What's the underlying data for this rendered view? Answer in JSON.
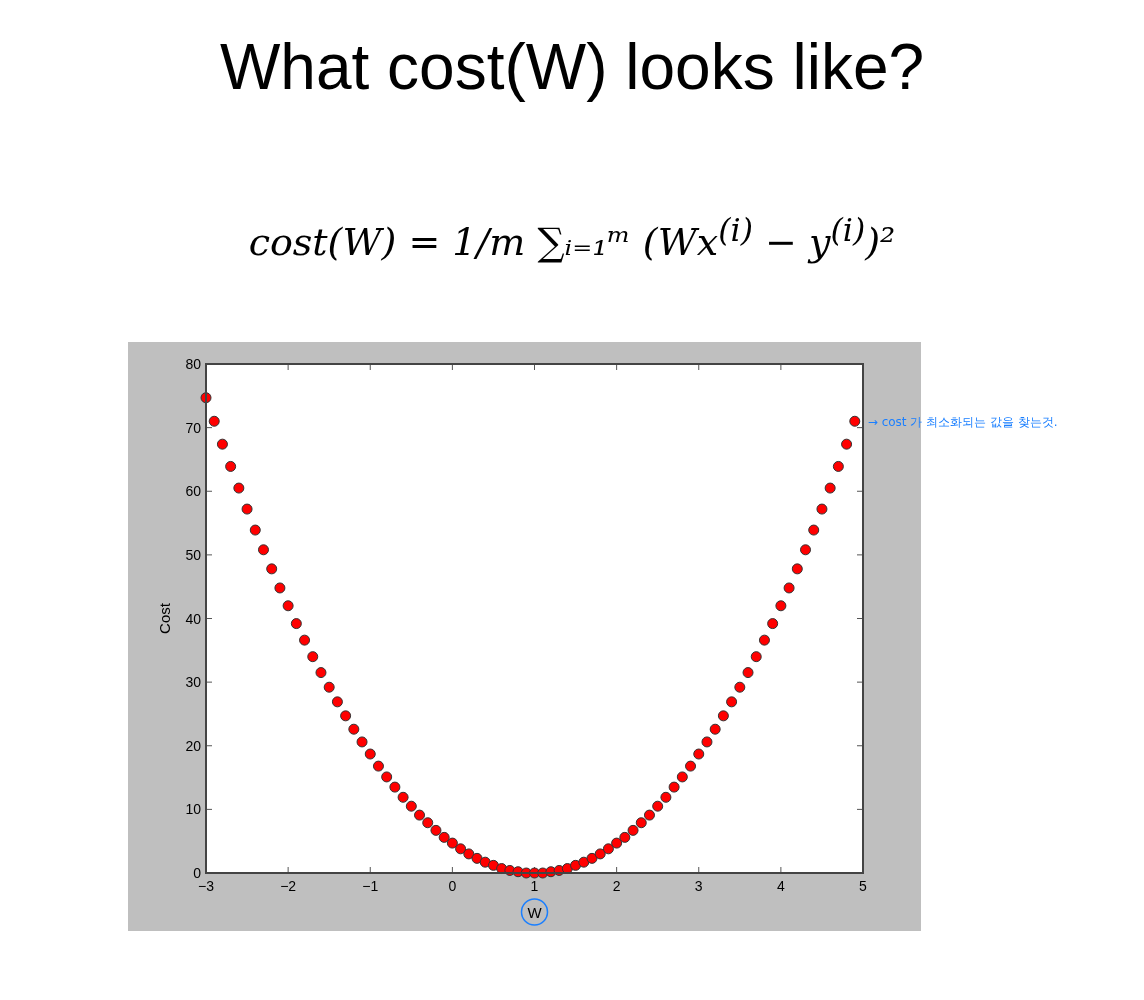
{
  "chart_data": {
    "type": "scatter",
    "title": "What cost(W) looks like?",
    "subtitle": "cost(W) = 1/m ∑ᵢ₌₁ᵐ (Wx$^{(i)}$ − y$^{(i)}$)²",
    "xlabel": "W",
    "ylabel": "Cost",
    "annotations": [
      {
        "text": "→ cost 가 최소화되는 값을 찾는것.",
        "x": 4.9,
        "y": 71.0
      }
    ],
    "x": [
      -3.0,
      -2.9,
      -2.8,
      -2.7,
      -2.6,
      -2.5,
      -2.4,
      -2.3,
      -2.2,
      -2.1,
      -2.0,
      -1.9,
      -1.8,
      -1.7,
      -1.6,
      -1.5,
      -1.4,
      -1.3,
      -1.2,
      -1.1,
      -1.0,
      -0.9,
      -0.8,
      -0.7,
      -0.6,
      -0.5,
      -0.4,
      -0.3,
      -0.2,
      -0.1,
      0.0,
      0.1,
      0.2,
      0.3,
      0.4,
      0.5,
      0.6,
      0.7,
      0.8,
      0.9,
      1.0,
      1.1,
      1.2,
      1.3,
      1.4,
      1.5,
      1.6,
      1.7,
      1.8,
      1.9,
      2.0,
      2.1,
      2.2,
      2.3,
      2.4,
      2.5,
      2.6,
      2.7,
      2.8,
      2.9,
      3.0,
      3.1,
      3.2,
      3.3,
      3.4,
      3.5,
      3.6,
      3.7,
      3.8,
      3.9,
      4.0,
      4.1,
      4.2,
      4.3,
      4.4,
      4.5,
      4.6,
      4.7,
      4.8,
      4.9
    ],
    "series": [
      {
        "color": "#ff0000",
        "values": [
          74.7,
          71.0,
          67.4,
          63.9,
          60.5,
          57.2,
          53.9,
          50.8,
          47.8,
          44.8,
          42.0,
          39.2,
          36.6,
          34.0,
          31.5,
          29.2,
          26.9,
          24.7,
          22.6,
          20.6,
          18.7,
          16.8,
          15.1,
          13.5,
          11.9,
          10.5,
          9.1,
          7.9,
          6.7,
          5.6,
          4.7,
          3.8,
          3.0,
          2.3,
          1.7,
          1.2,
          0.7,
          0.4,
          0.2,
          0.0,
          0.0,
          0.0,
          0.2,
          0.4,
          0.7,
          1.2,
          1.7,
          2.3,
          3.0,
          3.8,
          4.7,
          5.6,
          6.7,
          7.9,
          9.1,
          10.5,
          11.9,
          13.5,
          15.1,
          16.8,
          18.7,
          20.6,
          22.6,
          24.7,
          26.9,
          29.2,
          31.5,
          34.0,
          36.6,
          39.2,
          42.0,
          44.8,
          47.8,
          50.8,
          53.9,
          57.2,
          60.5,
          63.9,
          67.4,
          71.0
        ]
      }
    ],
    "xlim": [
      -3,
      5
    ],
    "ylim": [
      0,
      80
    ],
    "xticks": [
      -3,
      -2,
      -1,
      0,
      1,
      2,
      3,
      4,
      5
    ],
    "yticks": [
      0,
      10,
      20,
      30,
      40,
      50,
      60,
      70,
      80
    ],
    "grid": false,
    "marker": "circle"
  }
}
